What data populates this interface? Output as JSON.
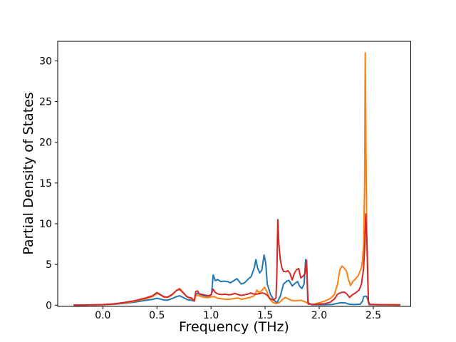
{
  "chart_data": {
    "type": "line",
    "title": "",
    "xlabel": "Frequency (THz)",
    "ylabel": "Partial Density of States",
    "xlim": [
      -0.417,
      2.846
    ],
    "ylim": [
      -0.15,
      32.4
    ],
    "grid": false,
    "legend_position": "none",
    "axis_color": "#000000",
    "background_color": "#ffffff",
    "xticks": {
      "values": [
        0.0,
        0.5,
        1.0,
        1.5,
        2.0,
        2.5
      ],
      "labels": [
        "0.0",
        "0.5",
        "1.0",
        "1.5",
        "2.0",
        "2.5"
      ]
    },
    "yticks": {
      "values": [
        0,
        5,
        10,
        15,
        20,
        25,
        30
      ],
      "labels": [
        "0",
        "5",
        "10",
        "15",
        "20",
        "25",
        "30"
      ]
    },
    "series": [
      {
        "name": "pdos-series-blue",
        "color": "#1f77b4",
        "linewidth": 2,
        "points": [
          [
            -0.27,
            0
          ],
          [
            -0.15,
            0.02
          ],
          [
            0,
            0.05
          ],
          [
            0.1,
            0.1
          ],
          [
            0.2,
            0.22
          ],
          [
            0.3,
            0.38
          ],
          [
            0.4,
            0.6
          ],
          [
            0.46,
            0.72
          ],
          [
            0.5,
            0.85
          ],
          [
            0.53,
            0.75
          ],
          [
            0.57,
            0.62
          ],
          [
            0.6,
            0.62
          ],
          [
            0.64,
            0.8
          ],
          [
            0.68,
            1.05
          ],
          [
            0.71,
            1.15
          ],
          [
            0.74,
            0.95
          ],
          [
            0.78,
            0.68
          ],
          [
            0.82,
            0.6
          ],
          [
            0.845,
            0.5
          ],
          [
            0.86,
            1.35
          ],
          [
            0.88,
            1.45
          ],
          [
            0.9,
            1.3
          ],
          [
            0.93,
            1.2
          ],
          [
            0.96,
            1.1
          ],
          [
            0.99,
            1.15
          ],
          [
            1.005,
            1.3
          ],
          [
            1.02,
            3.7
          ],
          [
            1.04,
            3.0
          ],
          [
            1.06,
            3.15
          ],
          [
            1.09,
            2.9
          ],
          [
            1.12,
            2.95
          ],
          [
            1.15,
            2.9
          ],
          [
            1.18,
            2.75
          ],
          [
            1.21,
            3.0
          ],
          [
            1.24,
            3.25
          ],
          [
            1.26,
            2.9
          ],
          [
            1.28,
            2.6
          ],
          [
            1.31,
            2.75
          ],
          [
            1.34,
            3.15
          ],
          [
            1.37,
            3.5
          ],
          [
            1.4,
            4.6
          ],
          [
            1.415,
            5.6
          ],
          [
            1.43,
            4.6
          ],
          [
            1.45,
            3.95
          ],
          [
            1.47,
            4.3
          ],
          [
            1.49,
            6.15
          ],
          [
            1.505,
            5.2
          ],
          [
            1.52,
            2.6
          ],
          [
            1.55,
            1.3
          ],
          [
            1.58,
            0.6
          ],
          [
            1.61,
            0.3
          ],
          [
            1.64,
            1.1
          ],
          [
            1.67,
            2.6
          ],
          [
            1.7,
            2.95
          ],
          [
            1.72,
            3.05
          ],
          [
            1.75,
            2.35
          ],
          [
            1.78,
            2.7
          ],
          [
            1.8,
            2.9
          ],
          [
            1.82,
            2.3
          ],
          [
            1.84,
            2.05
          ],
          [
            1.86,
            2.6
          ],
          [
            1.875,
            5.6
          ],
          [
            1.885,
            4.5
          ],
          [
            1.895,
            0.3
          ],
          [
            1.93,
            0.05
          ],
          [
            2.05,
            0.05
          ],
          [
            2.12,
            0.08
          ],
          [
            2.16,
            0.2
          ],
          [
            2.2,
            0.3
          ],
          [
            2.24,
            0.28
          ],
          [
            2.28,
            0.1
          ],
          [
            2.33,
            0.08
          ],
          [
            2.38,
            0.12
          ],
          [
            2.4,
            0.5
          ],
          [
            2.41,
            1.05
          ],
          [
            2.43,
            1.1
          ],
          [
            2.44,
            1.05
          ],
          [
            2.45,
            0.6
          ],
          [
            2.46,
            0.05
          ],
          [
            2.55,
            0.03
          ],
          [
            2.75,
            0.02
          ]
        ]
      },
      {
        "name": "pdos-series-orange",
        "color": "#ff7f0e",
        "linewidth": 2,
        "points": [
          [
            -0.27,
            0
          ],
          [
            -0.15,
            0.02
          ],
          [
            0,
            0.06
          ],
          [
            0.1,
            0.13
          ],
          [
            0.2,
            0.28
          ],
          [
            0.3,
            0.5
          ],
          [
            0.4,
            0.8
          ],
          [
            0.46,
            1.05
          ],
          [
            0.5,
            1.45
          ],
          [
            0.53,
            1.25
          ],
          [
            0.57,
            0.95
          ],
          [
            0.6,
            0.95
          ],
          [
            0.64,
            1.25
          ],
          [
            0.68,
            1.8
          ],
          [
            0.71,
            2.05
          ],
          [
            0.74,
            1.6
          ],
          [
            0.78,
            1.0
          ],
          [
            0.82,
            0.8
          ],
          [
            0.845,
            0.5
          ],
          [
            0.86,
            1.15
          ],
          [
            0.88,
            1.2
          ],
          [
            0.91,
            1.05
          ],
          [
            0.94,
            0.95
          ],
          [
            0.97,
            0.92
          ],
          [
            1.0,
            1.0
          ],
          [
            1.03,
            1.05
          ],
          [
            1.06,
            0.85
          ],
          [
            1.1,
            0.78
          ],
          [
            1.14,
            0.72
          ],
          [
            1.18,
            0.75
          ],
          [
            1.22,
            0.82
          ],
          [
            1.25,
            0.88
          ],
          [
            1.28,
            0.72
          ],
          [
            1.32,
            0.82
          ],
          [
            1.36,
            0.95
          ],
          [
            1.4,
            1.15
          ],
          [
            1.425,
            1.85
          ],
          [
            1.445,
            1.5
          ],
          [
            1.47,
            1.8
          ],
          [
            1.495,
            2.2
          ],
          [
            1.515,
            1.7
          ],
          [
            1.54,
            0.8
          ],
          [
            1.57,
            0.35
          ],
          [
            1.6,
            0.18
          ],
          [
            1.63,
            0.3
          ],
          [
            1.66,
            0.7
          ],
          [
            1.685,
            0.95
          ],
          [
            1.71,
            0.8
          ],
          [
            1.74,
            0.6
          ],
          [
            1.77,
            0.52
          ],
          [
            1.8,
            0.55
          ],
          [
            1.83,
            0.6
          ],
          [
            1.86,
            0.45
          ],
          [
            1.88,
            0.35
          ],
          [
            1.9,
            0.12
          ],
          [
            1.95,
            0.1
          ],
          [
            2.0,
            0.3
          ],
          [
            2.05,
            0.5
          ],
          [
            2.1,
            0.8
          ],
          [
            2.14,
            1.3
          ],
          [
            2.17,
            2.6
          ],
          [
            2.19,
            4.3
          ],
          [
            2.21,
            4.8
          ],
          [
            2.23,
            4.55
          ],
          [
            2.25,
            4.25
          ],
          [
            2.27,
            3.2
          ],
          [
            2.29,
            2.4
          ],
          [
            2.31,
            2.9
          ],
          [
            2.33,
            3.15
          ],
          [
            2.36,
            3.6
          ],
          [
            2.39,
            4.6
          ],
          [
            2.4,
            5.5
          ],
          [
            2.41,
            7.5
          ],
          [
            2.42,
            15
          ],
          [
            2.425,
            31
          ],
          [
            2.432,
            20
          ],
          [
            2.44,
            8
          ],
          [
            2.448,
            3
          ],
          [
            2.455,
            0.4
          ],
          [
            2.47,
            0.08
          ],
          [
            2.55,
            0.04
          ],
          [
            2.75,
            0.02
          ]
        ]
      },
      {
        "name": "pdos-series-red",
        "color": "#d62728",
        "linewidth": 2,
        "points": [
          [
            -0.27,
            0
          ],
          [
            -0.15,
            0.02
          ],
          [
            0,
            0.07
          ],
          [
            0.1,
            0.16
          ],
          [
            0.2,
            0.33
          ],
          [
            0.3,
            0.56
          ],
          [
            0.4,
            0.9
          ],
          [
            0.46,
            1.15
          ],
          [
            0.5,
            1.55
          ],
          [
            0.53,
            1.3
          ],
          [
            0.57,
            1.0
          ],
          [
            0.6,
            1.0
          ],
          [
            0.64,
            1.3
          ],
          [
            0.68,
            1.8
          ],
          [
            0.71,
            1.95
          ],
          [
            0.74,
            1.55
          ],
          [
            0.78,
            1.0
          ],
          [
            0.82,
            0.88
          ],
          [
            0.845,
            0.5
          ],
          [
            0.86,
            1.7
          ],
          [
            0.875,
            1.75
          ],
          [
            0.89,
            1.4
          ],
          [
            0.92,
            1.3
          ],
          [
            0.95,
            1.22
          ],
          [
            0.98,
            1.15
          ],
          [
            1.0,
            1.3
          ],
          [
            1.02,
            1.95
          ],
          [
            1.04,
            1.55
          ],
          [
            1.07,
            1.35
          ],
          [
            1.1,
            1.3
          ],
          [
            1.13,
            1.35
          ],
          [
            1.16,
            1.28
          ],
          [
            1.19,
            1.3
          ],
          [
            1.22,
            1.45
          ],
          [
            1.25,
            1.3
          ],
          [
            1.28,
            1.2
          ],
          [
            1.31,
            1.28
          ],
          [
            1.34,
            1.35
          ],
          [
            1.365,
            1.5
          ],
          [
            1.39,
            1.38
          ],
          [
            1.42,
            1.35
          ],
          [
            1.45,
            1.42
          ],
          [
            1.475,
            1.5
          ],
          [
            1.5,
            1.4
          ],
          [
            1.52,
            1.2
          ],
          [
            1.55,
            0.75
          ],
          [
            1.58,
            0.62
          ],
          [
            1.6,
            0.9
          ],
          [
            1.608,
            3.5
          ],
          [
            1.617,
            10.5
          ],
          [
            1.627,
            7.5
          ],
          [
            1.64,
            5.6
          ],
          [
            1.655,
            4.6
          ],
          [
            1.67,
            4.15
          ],
          [
            1.69,
            4.1
          ],
          [
            1.71,
            4.25
          ],
          [
            1.73,
            3.9
          ],
          [
            1.75,
            3.1
          ],
          [
            1.77,
            3.9
          ],
          [
            1.79,
            4.35
          ],
          [
            1.81,
            4.5
          ],
          [
            1.83,
            3.35
          ],
          [
            1.85,
            3.55
          ],
          [
            1.87,
            3.9
          ],
          [
            1.883,
            5.5
          ],
          [
            1.893,
            1.5
          ],
          [
            1.9,
            0.15
          ],
          [
            1.95,
            0.1
          ],
          [
            2.0,
            0.13
          ],
          [
            2.05,
            0.18
          ],
          [
            2.1,
            0.35
          ],
          [
            2.14,
            0.75
          ],
          [
            2.17,
            1.35
          ],
          [
            2.2,
            1.55
          ],
          [
            2.23,
            1.6
          ],
          [
            2.25,
            1.45
          ],
          [
            2.28,
            0.95
          ],
          [
            2.31,
            1.3
          ],
          [
            2.34,
            1.55
          ],
          [
            2.37,
            1.9
          ],
          [
            2.39,
            2.6
          ],
          [
            2.41,
            4.5
          ],
          [
            2.42,
            7.0
          ],
          [
            2.43,
            11.2
          ],
          [
            2.44,
            8.5
          ],
          [
            2.448,
            4.0
          ],
          [
            2.455,
            0.5
          ],
          [
            2.465,
            0.1
          ],
          [
            2.55,
            0.07
          ],
          [
            2.65,
            0.06
          ],
          [
            2.75,
            0.04
          ]
        ]
      }
    ]
  }
}
